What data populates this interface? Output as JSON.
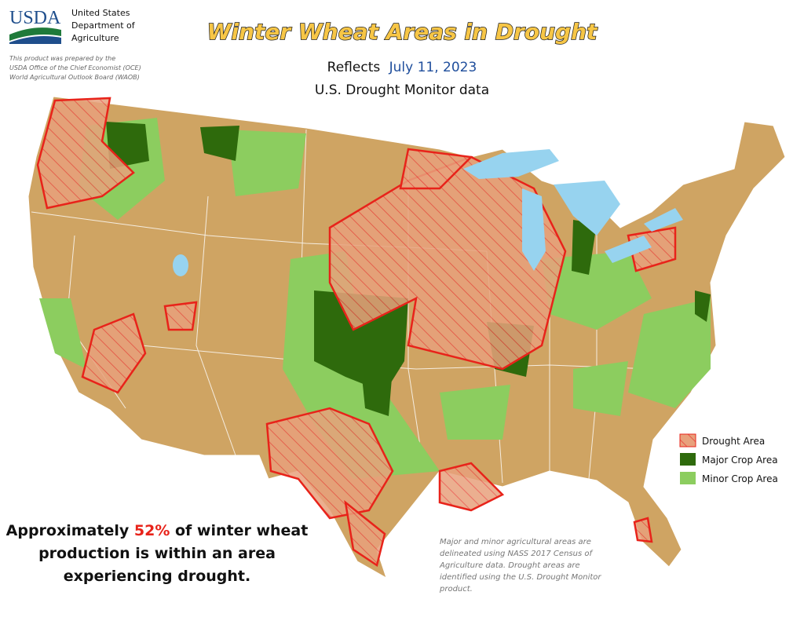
{
  "header": {
    "logo": "USDA",
    "agency": [
      "United States",
      "Department of",
      "Agriculture"
    ],
    "credit": [
      "This product was prepared by the",
      "USDA Office of the Chief Economist (OCE)",
      "World Agricultural Outlook Board (WAOB)"
    ],
    "title": "Winter Wheat Areas in Drought",
    "subtitle_prefix": "Reflects",
    "date": "July 11, 2023",
    "subtitle": "U.S. Drought Monitor data"
  },
  "legend": [
    "Drought Area",
    "Major Crop Area",
    "Minor Crop Area"
  ],
  "summary": {
    "prefix": "Approximately",
    "share": "52%",
    "lines": [
      "of winter wheat",
      "production is within an area",
      "experiencing drought."
    ]
  },
  "note": [
    "Major and minor agricultural areas are",
    "delineated using NASS 2017 Census of",
    "Agriculture data.  Drought areas are",
    "identified using the U.S. Drought Monitor",
    "product."
  ]
}
